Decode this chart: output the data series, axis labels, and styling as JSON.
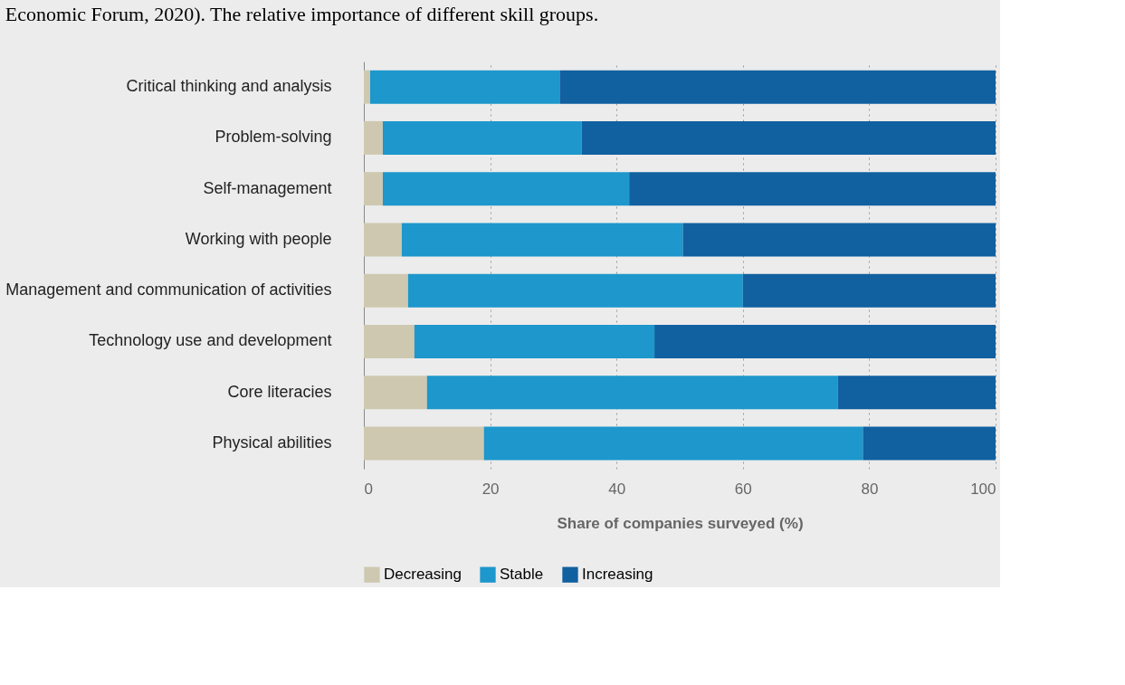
{
  "chart_data": {
    "type": "bar",
    "orientation": "horizontal",
    "stacked": true,
    "categories": [
      "Critical thinking and analysis",
      "Problem-solving",
      "Self-management",
      "Working with people",
      "Management and communication of activities",
      "Technology use and development",
      "Core literacies",
      "Physical abilities"
    ],
    "series": [
      {
        "name": "Decreasing",
        "color": "#cec8b0",
        "values": [
          1,
          3,
          3,
          6,
          7,
          8,
          10,
          19
        ]
      },
      {
        "name": "Stable",
        "color": "#1d97cc",
        "values": [
          30,
          31.5,
          39,
          44.5,
          53,
          38,
          65,
          60
        ]
      },
      {
        "name": "Increasing",
        "color": "#1160a0",
        "values": [
          69,
          65.5,
          58,
          49.5,
          40,
          54,
          25,
          21
        ]
      }
    ],
    "xlim": [
      0,
      100
    ],
    "xticks": [
      0,
      20,
      40,
      60,
      80,
      100
    ],
    "xlabel": "Share of companies surveyed (%)",
    "grid": "x",
    "legend": "bottom",
    "annotations": [
      "Economic Forum, 2020). The relative importance of different skill groups."
    ]
  }
}
